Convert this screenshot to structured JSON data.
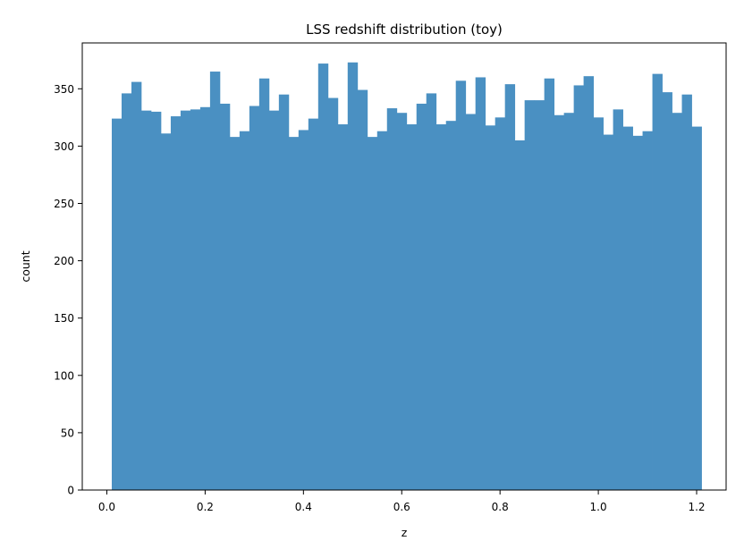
{
  "chart_data": {
    "type": "bar",
    "title": "LSS redshift distribution (toy)",
    "xlabel": "z",
    "ylabel": "count",
    "xlim": [
      -0.05,
      1.26
    ],
    "ylim": [
      0,
      390
    ],
    "xticks": [
      0.0,
      0.2,
      0.4,
      0.6,
      0.8,
      1.0,
      1.2
    ],
    "xtick_labels": [
      "0.0",
      "0.2",
      "0.4",
      "0.6",
      "0.8",
      "1.0",
      "1.2"
    ],
    "yticks": [
      0,
      50,
      100,
      150,
      200,
      250,
      300,
      350
    ],
    "ytick_labels": [
      "0",
      "50",
      "100",
      "150",
      "200",
      "250",
      "300",
      "350"
    ],
    "grid": false,
    "bar_color": "#4a90c2",
    "bin_edges": [
      0.01,
      0.03,
      0.05,
      0.07,
      0.09,
      0.11,
      0.13,
      0.15,
      0.17,
      0.19,
      0.21,
      0.23,
      0.25,
      0.27,
      0.29,
      0.31,
      0.33,
      0.35,
      0.37,
      0.39,
      0.41,
      0.43,
      0.45,
      0.47,
      0.49,
      0.51,
      0.53,
      0.55,
      0.57,
      0.59,
      0.61,
      0.63,
      0.65,
      0.67,
      0.69,
      0.71,
      0.73,
      0.75,
      0.77,
      0.79,
      0.81,
      0.83,
      0.85,
      0.87,
      0.89,
      0.91,
      0.93,
      0.95,
      0.97,
      0.99,
      1.01,
      1.03,
      1.05,
      1.07,
      1.09,
      1.11,
      1.13,
      1.15,
      1.17,
      1.19,
      1.21
    ],
    "values": [
      324,
      346,
      356,
      331,
      330,
      311,
      326,
      331,
      332,
      334,
      365,
      337,
      308,
      313,
      335,
      359,
      331,
      345,
      308,
      314,
      324,
      372,
      342,
      319,
      373,
      349,
      308,
      313,
      333,
      329,
      319,
      337,
      346,
      319,
      322,
      357,
      328,
      360,
      318,
      325,
      354,
      305,
      340,
      340,
      359,
      327,
      329,
      353,
      361,
      325,
      310,
      332,
      317,
      309,
      313,
      363,
      347,
      329,
      345,
      317
    ]
  }
}
